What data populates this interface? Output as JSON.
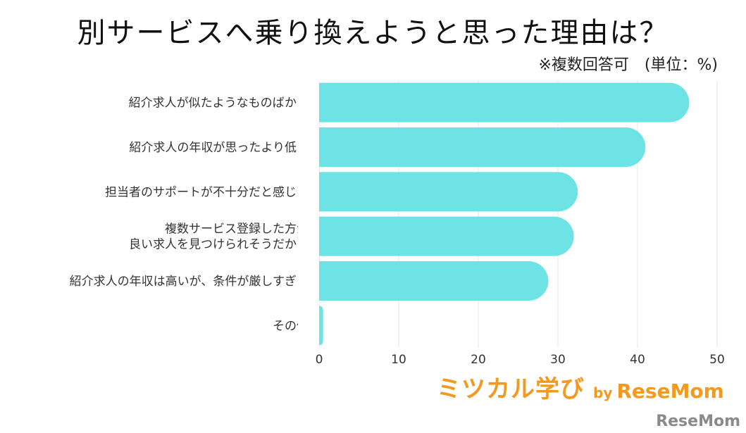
{
  "colors": {
    "bar": "#6ee3e6",
    "grid": "#e4e4e4",
    "logo": "#f29a1f"
  },
  "chart_data": {
    "type": "bar",
    "orientation": "horizontal",
    "title": "別サービスへ乗り換えようと思った理由は？",
    "subtitle": "※複数回答可　(単位：%)",
    "categories": [
      [
        "紹介求人が似たようなものばかり"
      ],
      [
        "紹介求人の年収が思ったより低い"
      ],
      [
        "担当者のサポートが不十分だと感じる"
      ],
      [
        "複数サービス登録した方が",
        "良い求人を見つけられそうだから"
      ],
      [
        "紹介求人の年収は高いが、条件が厳しすぎる"
      ],
      [
        "その他"
      ]
    ],
    "values": [
      46.5,
      41,
      32.5,
      32,
      28.8,
      0.5
    ],
    "xlim": [
      0,
      50
    ],
    "xticks": [
      0,
      10,
      20,
      30,
      40,
      50
    ],
    "grid": true,
    "legend": "none"
  },
  "logo": {
    "main": "ミツカル学び",
    "by": "by",
    "brand": "ReseMom"
  },
  "watermark": "ReseMom"
}
